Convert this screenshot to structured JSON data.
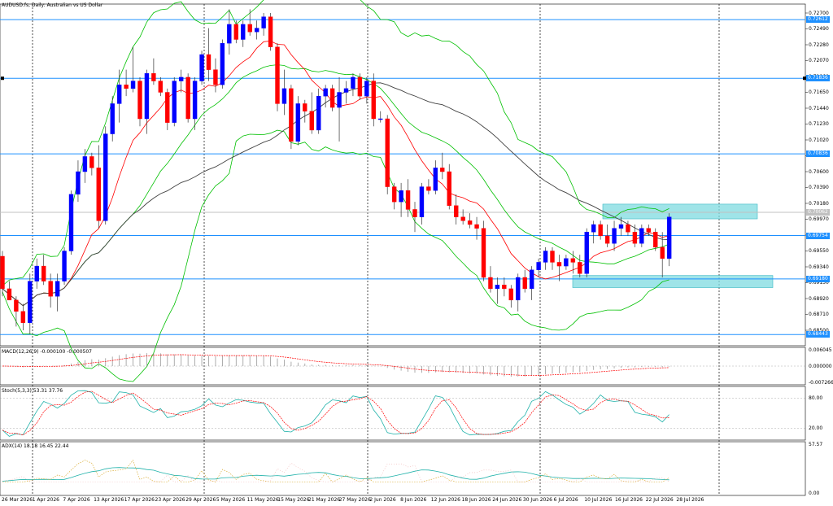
{
  "title": "AUDUSD.fs, Daily:  Australian vs US Dollar",
  "macd_label": "MACD(12,26,9) -0.000100 -0.000507",
  "stoch_label": "Stoch(5,3,3) 53.31 37.76",
  "adx_label": "ADX(14) 18.18 16.45 22.44",
  "price_axis": [
    "0.72700",
    "0.72490",
    "0.72280",
    "0.72070",
    "0.71860",
    "0.71650",
    "0.71440",
    "0.71230",
    "0.71020",
    "0.70810",
    "0.70600",
    "0.70390",
    "0.70180",
    "0.69970",
    "0.69760",
    "0.69550",
    "0.69340",
    "0.69130",
    "0.68920",
    "0.68710",
    "0.68500"
  ],
  "macd_axis": [
    "0.006045",
    "0.000000",
    "-0.007266"
  ],
  "stoch_axis": [
    "80.00",
    "20.00"
  ],
  "adx_axis": [
    "57.57",
    "0.00"
  ],
  "levels": [
    {
      "price": "0.72612",
      "color": "#1e90ff"
    },
    {
      "price": "0.71836",
      "color": "#1e90ff"
    },
    {
      "price": "0.70836",
      "color": "#1e90ff"
    },
    {
      "price": "0.70062",
      "color": "#c0c0c0"
    },
    {
      "price": "0.69754",
      "color": "#1e90ff"
    },
    {
      "price": "0.69180",
      "color": "#1e90ff"
    },
    {
      "price": "0.68443",
      "color": "#1e90ff"
    }
  ],
  "x_axis": [
    "26 Mar 2026",
    "1 Apr 2026",
    "7 Apr 2026",
    "13 Apr 2026",
    "17 Apr 2026",
    "23 Apr 2026",
    "29 Apr 2026",
    "5 May 2026",
    "11 May 2026",
    "15 May 2026",
    "21 May 2026",
    "27 May 2026",
    "2 Jun 2026",
    "8 Jun 2026",
    "12 Jun 2026",
    "18 Jun 2026",
    "24 Jun 2026",
    "30 Jun 2026",
    "6 Jul 2026",
    "10 Jul 2026",
    "16 Jul 2026",
    "22 Jul 2026",
    "28 Jul 2026"
  ],
  "colors": {
    "bull": "#0000ff",
    "bear": "#ff0000",
    "bb": "#00c000",
    "zone": "#7fdbe0",
    "level": "#1e90ff",
    "ma_fast": "#ff0000",
    "ma_slow": "#404040"
  }
}
